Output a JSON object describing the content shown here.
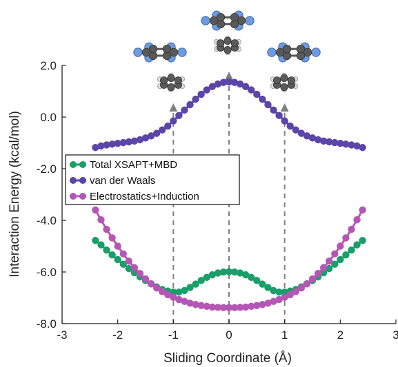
{
  "chart_data": {
    "type": "scatter",
    "xlabel": "Sliding Coordinate (Å)",
    "ylabel": "Interaction Energy (kcal/mol)",
    "xlim": [
      -3,
      3
    ],
    "ylim": [
      -8,
      2
    ],
    "x_ticks": [
      -3,
      -2,
      -1,
      0,
      1,
      2,
      3
    ],
    "x_tick_labels": [
      "-3",
      "-2",
      "-1",
      "0",
      "1",
      "2",
      "3"
    ],
    "y_ticks": [
      -8,
      -6,
      -4,
      -2,
      0,
      2
    ],
    "y_tick_labels": [
      "-8.0",
      "-6.0",
      "-4.0",
      "-2.0",
      "0.0",
      "2.0"
    ],
    "grid": false,
    "legend_position": "left-middle",
    "reference_lines_x": [
      -1,
      0,
      1
    ],
    "x": [
      -2.4,
      -2.3,
      -2.2,
      -2.1,
      -2.0,
      -1.9,
      -1.8,
      -1.7,
      -1.6,
      -1.5,
      -1.4,
      -1.3,
      -1.2,
      -1.1,
      -1.0,
      -0.9,
      -0.8,
      -0.7,
      -0.6,
      -0.5,
      -0.4,
      -0.3,
      -0.2,
      -0.1,
      0.0,
      0.1,
      0.2,
      0.3,
      0.4,
      0.5,
      0.6,
      0.7,
      0.8,
      0.9,
      1.0,
      1.1,
      1.2,
      1.3,
      1.4,
      1.5,
      1.6,
      1.7,
      1.8,
      1.9,
      2.0,
      2.1,
      2.2,
      2.3,
      2.4
    ],
    "series": [
      {
        "name": "Total XSAPT+MBD",
        "color": "#1a9e6a",
        "values": [
          -4.78,
          -4.95,
          -5.15,
          -5.34,
          -5.52,
          -5.7,
          -5.87,
          -6.03,
          -6.19,
          -6.33,
          -6.46,
          -6.58,
          -6.68,
          -6.74,
          -6.78,
          -6.78,
          -6.72,
          -6.6,
          -6.47,
          -6.33,
          -6.21,
          -6.11,
          -6.04,
          -6.0,
          -5.99,
          -6.0,
          -6.04,
          -6.11,
          -6.21,
          -6.33,
          -6.47,
          -6.6,
          -6.72,
          -6.78,
          -6.78,
          -6.74,
          -6.68,
          -6.58,
          -6.46,
          -6.33,
          -6.19,
          -6.03,
          -5.87,
          -5.7,
          -5.52,
          -5.34,
          -5.15,
          -4.95,
          -4.78
        ]
      },
      {
        "name": "van der Waals",
        "color": "#5b45a8",
        "values": [
          -1.18,
          -1.12,
          -1.08,
          -1.05,
          -1.02,
          -0.99,
          -0.96,
          -0.93,
          -0.88,
          -0.81,
          -0.73,
          -0.63,
          -0.5,
          -0.35,
          -0.15,
          0.06,
          0.27,
          0.48,
          0.69,
          0.88,
          1.05,
          1.18,
          1.28,
          1.34,
          1.36,
          1.34,
          1.28,
          1.18,
          1.05,
          0.88,
          0.69,
          0.48,
          0.27,
          0.06,
          -0.15,
          -0.35,
          -0.5,
          -0.63,
          -0.73,
          -0.81,
          -0.88,
          -0.93,
          -0.96,
          -0.99,
          -1.02,
          -1.05,
          -1.08,
          -1.12,
          -1.18
        ]
      },
      {
        "name": "Electrostatics+Induction",
        "color": "#b457b4",
        "values": [
          -3.6,
          -3.98,
          -4.35,
          -4.68,
          -5.0,
          -5.3,
          -5.58,
          -5.83,
          -6.06,
          -6.27,
          -6.46,
          -6.62,
          -6.76,
          -6.88,
          -6.98,
          -7.07,
          -7.14,
          -7.21,
          -7.26,
          -7.3,
          -7.33,
          -7.36,
          -7.37,
          -7.38,
          -7.38,
          -7.38,
          -7.37,
          -7.36,
          -7.33,
          -7.3,
          -7.26,
          -7.21,
          -7.14,
          -7.07,
          -6.98,
          -6.88,
          -6.76,
          -6.62,
          -6.46,
          -6.27,
          -6.06,
          -5.83,
          -5.58,
          -5.3,
          -5.0,
          -4.68,
          -4.35,
          -3.98,
          -3.6
        ]
      }
    ]
  },
  "molecule_icons": [
    "benzene-hexafluorobenzene-stack-left",
    "benzene-hexafluorobenzene-stack-center",
    "benzene-hexafluorobenzene-stack-right"
  ]
}
